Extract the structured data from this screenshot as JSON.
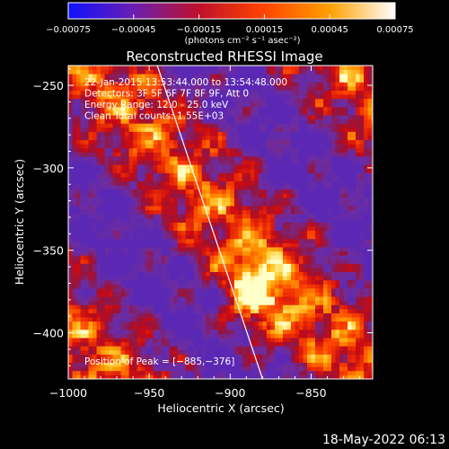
{
  "chart_data": {
    "type": "heatmap",
    "title": "Reconstructed RHESSI Image",
    "xlabel": "Heliocentric X (arcsec)",
    "ylabel": "Heliocentric Y (arcsec)",
    "xlim": [
      -1000,
      -812
    ],
    "ylim": [
      -428,
      -238
    ],
    "x_ticks": [
      -1000,
      -950,
      -900,
      -850
    ],
    "x_tick_labels": [
      "−1000",
      "−950",
      "−900",
      "−850"
    ],
    "y_ticks": [
      -250,
      -300,
      -350,
      -400
    ],
    "y_tick_labels": [
      "−250",
      "−300",
      "−350",
      "−400"
    ],
    "colorbar": {
      "range": [
        -0.00075,
        0.00075
      ],
      "ticks": [
        -0.00075,
        -0.00045,
        -0.00015,
        0.00015,
        0.00045,
        0.00075
      ],
      "tick_labels": [
        "−0.00075",
        "−0.00045",
        "−0.00015",
        "0.00015",
        "0.00045",
        "0.00075"
      ],
      "units": "(photons cm⁻² s⁻¹ asec⁻²)",
      "colors": [
        "#1010ff",
        "#6a1fb0",
        "#c0102a",
        "#ff4400",
        "#ffa000",
        "#ffffff"
      ]
    },
    "annotations": [
      "22-Jan-2015 13:53:44.000 to 13:54:48.000",
      "Detectors: 3F 5F 6F 7F 8F 9F, Att 0",
      "Energy Range: 12.0 - 25.0 keV",
      "Clean     Total counts: 1.55E+03"
    ],
    "peak_label": "Position of Peak = [−885,−376]",
    "peak": [
      -885,
      -376
    ],
    "limb_line": [
      [
        -945,
        -238
      ],
      [
        -880,
        -428
      ]
    ],
    "grid": false
  },
  "footer_timestamp": "18-May-2022 06:13"
}
